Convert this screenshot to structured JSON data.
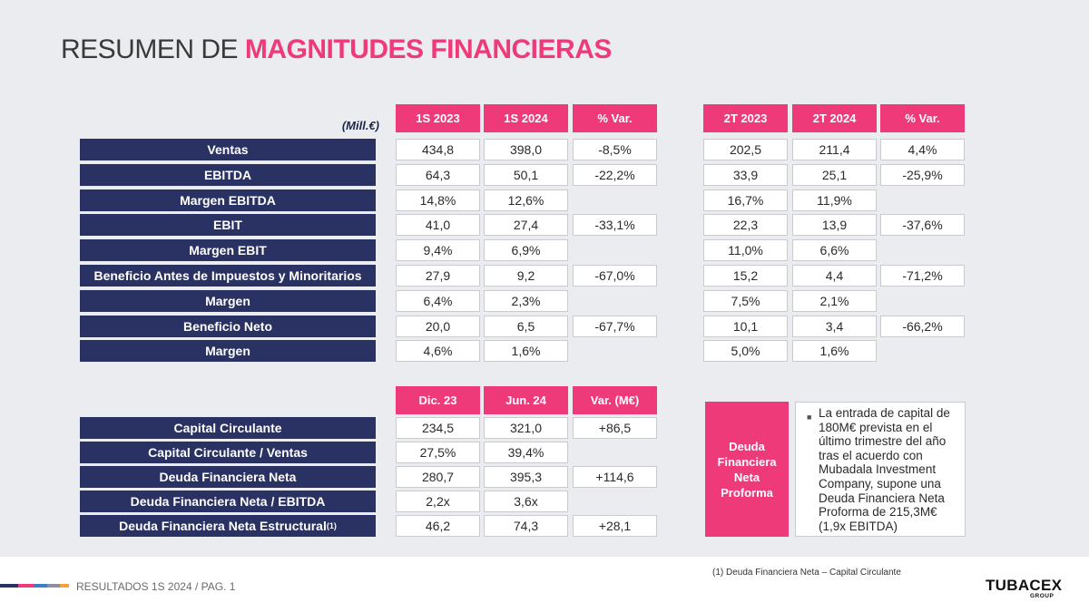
{
  "title": {
    "light": "RESUMEN DE ",
    "bold": "MAGNITUDES FINANCIERAS"
  },
  "unit_label": "(Mill.€)",
  "results": {
    "headers_h1": [
      "1S 2023",
      "1S 2024",
      "% Var."
    ],
    "headers_q2": [
      "2T 2023",
      "2T 2024",
      "% Var."
    ],
    "rows": [
      {
        "label": "Ventas",
        "h1": [
          "434,8",
          "398,0",
          "-8,5%"
        ],
        "q2": [
          "202,5",
          "211,4",
          "4,4%"
        ]
      },
      {
        "label": "EBITDA",
        "h1": [
          "64,3",
          "50,1",
          "-22,2%"
        ],
        "q2": [
          "33,9",
          "25,1",
          "-25,9%"
        ]
      },
      {
        "label": "Margen EBITDA",
        "h1": [
          "14,8%",
          "12,6%",
          ""
        ],
        "q2": [
          "16,7%",
          "11,9%",
          ""
        ]
      },
      {
        "label": "EBIT",
        "h1": [
          "41,0",
          "27,4",
          "-33,1%"
        ],
        "q2": [
          "22,3",
          "13,9",
          "-37,6%"
        ]
      },
      {
        "label": "Margen EBIT",
        "h1": [
          "9,4%",
          "6,9%",
          ""
        ],
        "q2": [
          "11,0%",
          "6,6%",
          ""
        ]
      },
      {
        "label": "Beneficio Antes de Impuestos y Minoritarios",
        "h1": [
          "27,9",
          "9,2",
          "-67,0%"
        ],
        "q2": [
          "15,2",
          "4,4",
          "-71,2%"
        ]
      },
      {
        "label": "Margen",
        "h1": [
          "6,4%",
          "2,3%",
          ""
        ],
        "q2": [
          "7,5%",
          "2,1%",
          ""
        ]
      },
      {
        "label": "Beneficio Neto",
        "h1": [
          "20,0",
          "6,5",
          "-67,7%"
        ],
        "q2": [
          "10,1",
          "3,4",
          "-66,2%"
        ]
      },
      {
        "label": "Margen",
        "h1": [
          "4,6%",
          "1,6%",
          ""
        ],
        "q2": [
          "5,0%",
          "1,6%",
          ""
        ]
      }
    ]
  },
  "balance": {
    "headers": [
      "Dic. 23",
      "Jun. 24",
      "Var. (M€)"
    ],
    "rows": [
      {
        "label": "Capital Circulante",
        "sup": "",
        "vals": [
          "234,5",
          "321,0",
          "+86,5"
        ]
      },
      {
        "label": "Capital Circulante / Ventas",
        "sup": "",
        "vals": [
          "27,5%",
          "39,4%",
          ""
        ]
      },
      {
        "label": "Deuda Financiera Neta",
        "sup": "",
        "vals": [
          "280,7",
          "395,3",
          "+114,6"
        ]
      },
      {
        "label": "Deuda Financiera Neta / EBITDA",
        "sup": "",
        "vals": [
          "2,2x",
          "3,6x",
          ""
        ]
      },
      {
        "label": "Deuda Financiera Neta Estructural",
        "sup": "(1)",
        "vals": [
          "46,2",
          "74,3",
          "+28,1"
        ]
      }
    ]
  },
  "proforma": {
    "label": "Deuda Financiera Neta Proforma",
    "bullet_icon": "square-bullet-icon",
    "note": "La entrada de capital de 180M€ prevista en el último trimestre del año tras el acuerdo con Mubadala Investment Company, supone una Deuda Financiera Neta Proforma de 215,3M€ (1,9x EBITDA)"
  },
  "footnote": "(1) Deuda Financiera  Neta – Capital Circulante",
  "footer": {
    "text": "RESULTADOS 1S 2024 / PAG. 1"
  },
  "logo": {
    "name": "TUBACEX",
    "sub": "GROUP"
  },
  "colors": {
    "accent": "#ee3a78",
    "navy": "#293262",
    "background": "#ebecf0",
    "stripe": [
      "#293262",
      "#ee3a78",
      "#3b7fc4",
      "#8a8fa8",
      "#f3a23a"
    ]
  }
}
